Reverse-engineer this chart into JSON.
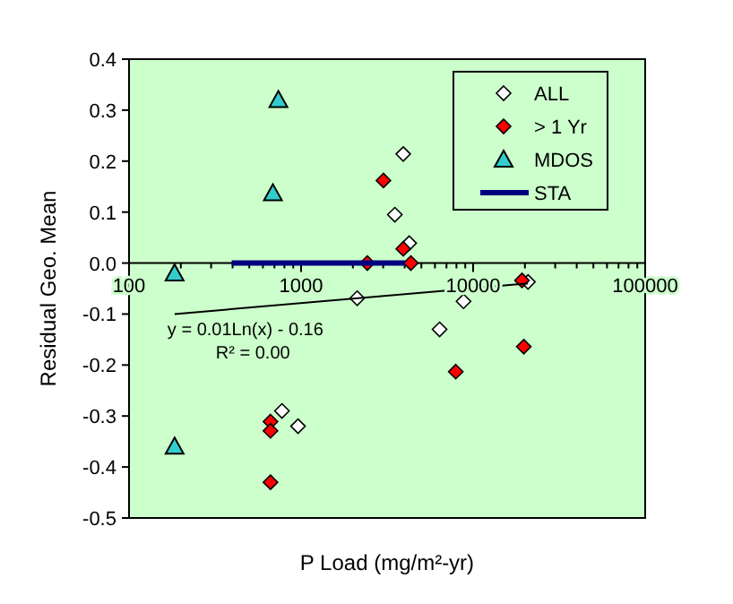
{
  "chart_data": {
    "type": "scatter",
    "xlabel": "P Load (mg/m²-yr)",
    "ylabel": "Residual Geo. Mean",
    "annotations": [
      "y = 0.01Ln(x) - 0.16",
      "R² = 0.00"
    ],
    "log": "x",
    "xlim": [
      100,
      100000
    ],
    "ylim": [
      -0.5,
      0.4
    ],
    "xticks": [
      100,
      {
        "value": 200,
        "label": null
      },
      {
        "value": 300,
        "label": null
      },
      {
        "value": 400,
        "label": null
      },
      {
        "value": 500,
        "label": null
      },
      {
        "value": 600,
        "label": null
      },
      {
        "value": 700,
        "label": null
      },
      {
        "value": 800,
        "label": null
      },
      {
        "value": 900,
        "label": null
      },
      1000,
      {
        "value": 2000,
        "label": null
      },
      {
        "value": 3000,
        "label": null
      },
      {
        "value": 4000,
        "label": null
      },
      {
        "value": 5000,
        "label": null
      },
      {
        "value": 6000,
        "label": null
      },
      {
        "value": 7000,
        "label": null
      },
      {
        "value": 8000,
        "label": null
      },
      {
        "value": 9000,
        "label": null
      },
      10000,
      {
        "value": 20000,
        "label": null
      },
      {
        "value": 30000,
        "label": null
      },
      {
        "value": 40000,
        "label": null
      },
      {
        "value": 50000,
        "label": null
      },
      {
        "value": 60000,
        "label": null
      },
      {
        "value": 70000,
        "label": null
      },
      {
        "value": 80000,
        "label": null
      },
      {
        "value": 90000,
        "label": null
      },
      100000
    ],
    "yticks": [
      -0.5,
      -0.4,
      -0.3,
      -0.2,
      -0.1,
      {
        "value": 0,
        "label": "0.0"
      },
      0.1,
      0.2,
      0.3,
      0.4
    ],
    "grid": false,
    "legend": "top right",
    "series": [
      {
        "name": "ALL",
        "color": "#ffffff",
        "marker": "diamond",
        "x": [
          3924,
          3506,
          4250,
          2119,
          6383,
          20840,
          8795,
          774,
          960
        ],
        "values": [
          0.214,
          0.095,
          0.039,
          -0.069,
          -0.13,
          -0.037,
          -0.075,
          -0.29,
          -0.32
        ]
      },
      {
        "name": "> 1 Yr",
        "color": "#ff0000",
        "marker": "diamond",
        "x": [
          3010,
          3924,
          2427,
          4345,
          19230,
          19700,
          7925,
          664,
          664,
          664
        ],
        "values": [
          0.162,
          0.028,
          0,
          0,
          -0.034,
          -0.164,
          -0.213,
          -0.311,
          -0.329,
          -0.43
        ]
      },
      {
        "name": "MDOS",
        "color": "#33cccc",
        "marker": "triangle",
        "x": [
          184,
          184,
          686,
          738
        ],
        "values": [
          -0.02,
          -0.36,
          0.137,
          0.32
        ]
      },
      {
        "name": "STA",
        "type": "line",
        "color": "#000080",
        "marker": "none",
        "x": [
          395,
          4018
        ],
        "values": [
          0,
          0
        ]
      },
      {
        "type": "line",
        "color": "#000000",
        "marker": "none",
        "x": [
          184,
          20840
        ],
        "values": [
          -0.1,
          -0.04
        ]
      }
    ]
  }
}
